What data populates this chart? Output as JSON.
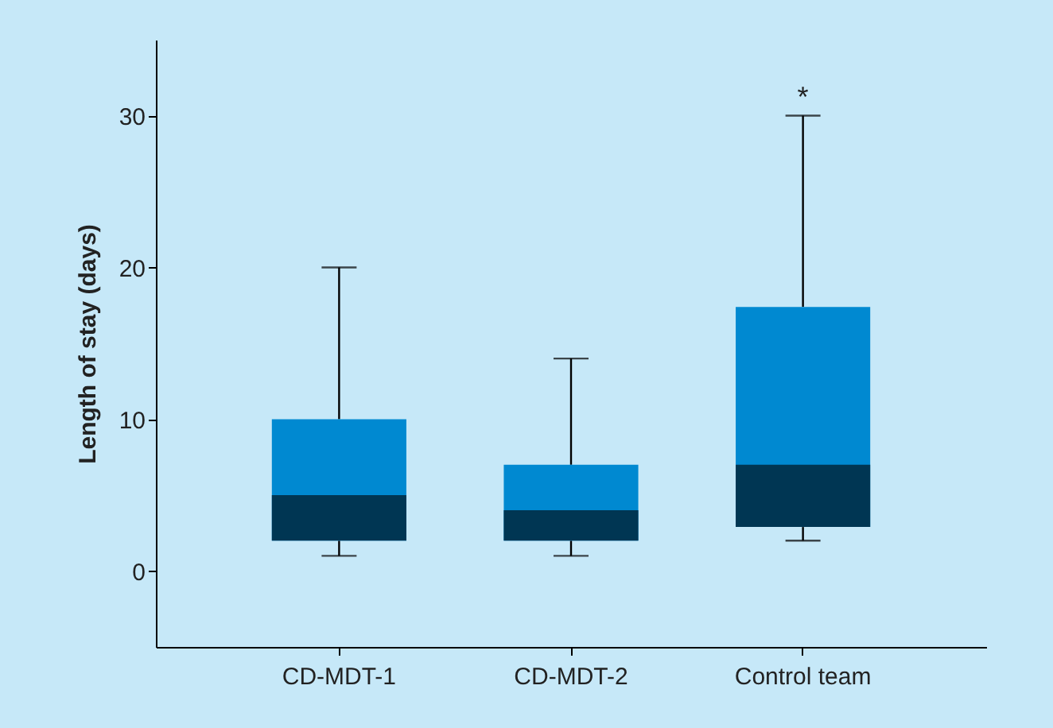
{
  "chart_data": {
    "type": "box",
    "ylabel": "Length of stay (days)",
    "categories": [
      "CD-MDT-1",
      "CD-MDT-2",
      "Control team"
    ],
    "series": [
      {
        "color": "#0089d1",
        "boxes": [
          {
            "low": 1,
            "q1": 2,
            "median": 5,
            "q3": 10,
            "high": 20
          },
          {
            "low": 1,
            "q1": 2,
            "median": 4,
            "q3": 7,
            "high": 14
          },
          {
            "low": 2,
            "q1": 2.9,
            "median": 7,
            "q3": 17.4,
            "high": 30
          }
        ]
      }
    ],
    "ylim": [
      -5,
      35
    ],
    "yticks": [
      0,
      10,
      20,
      30
    ],
    "grid": false,
    "annotations": [
      "*"
    ]
  }
}
